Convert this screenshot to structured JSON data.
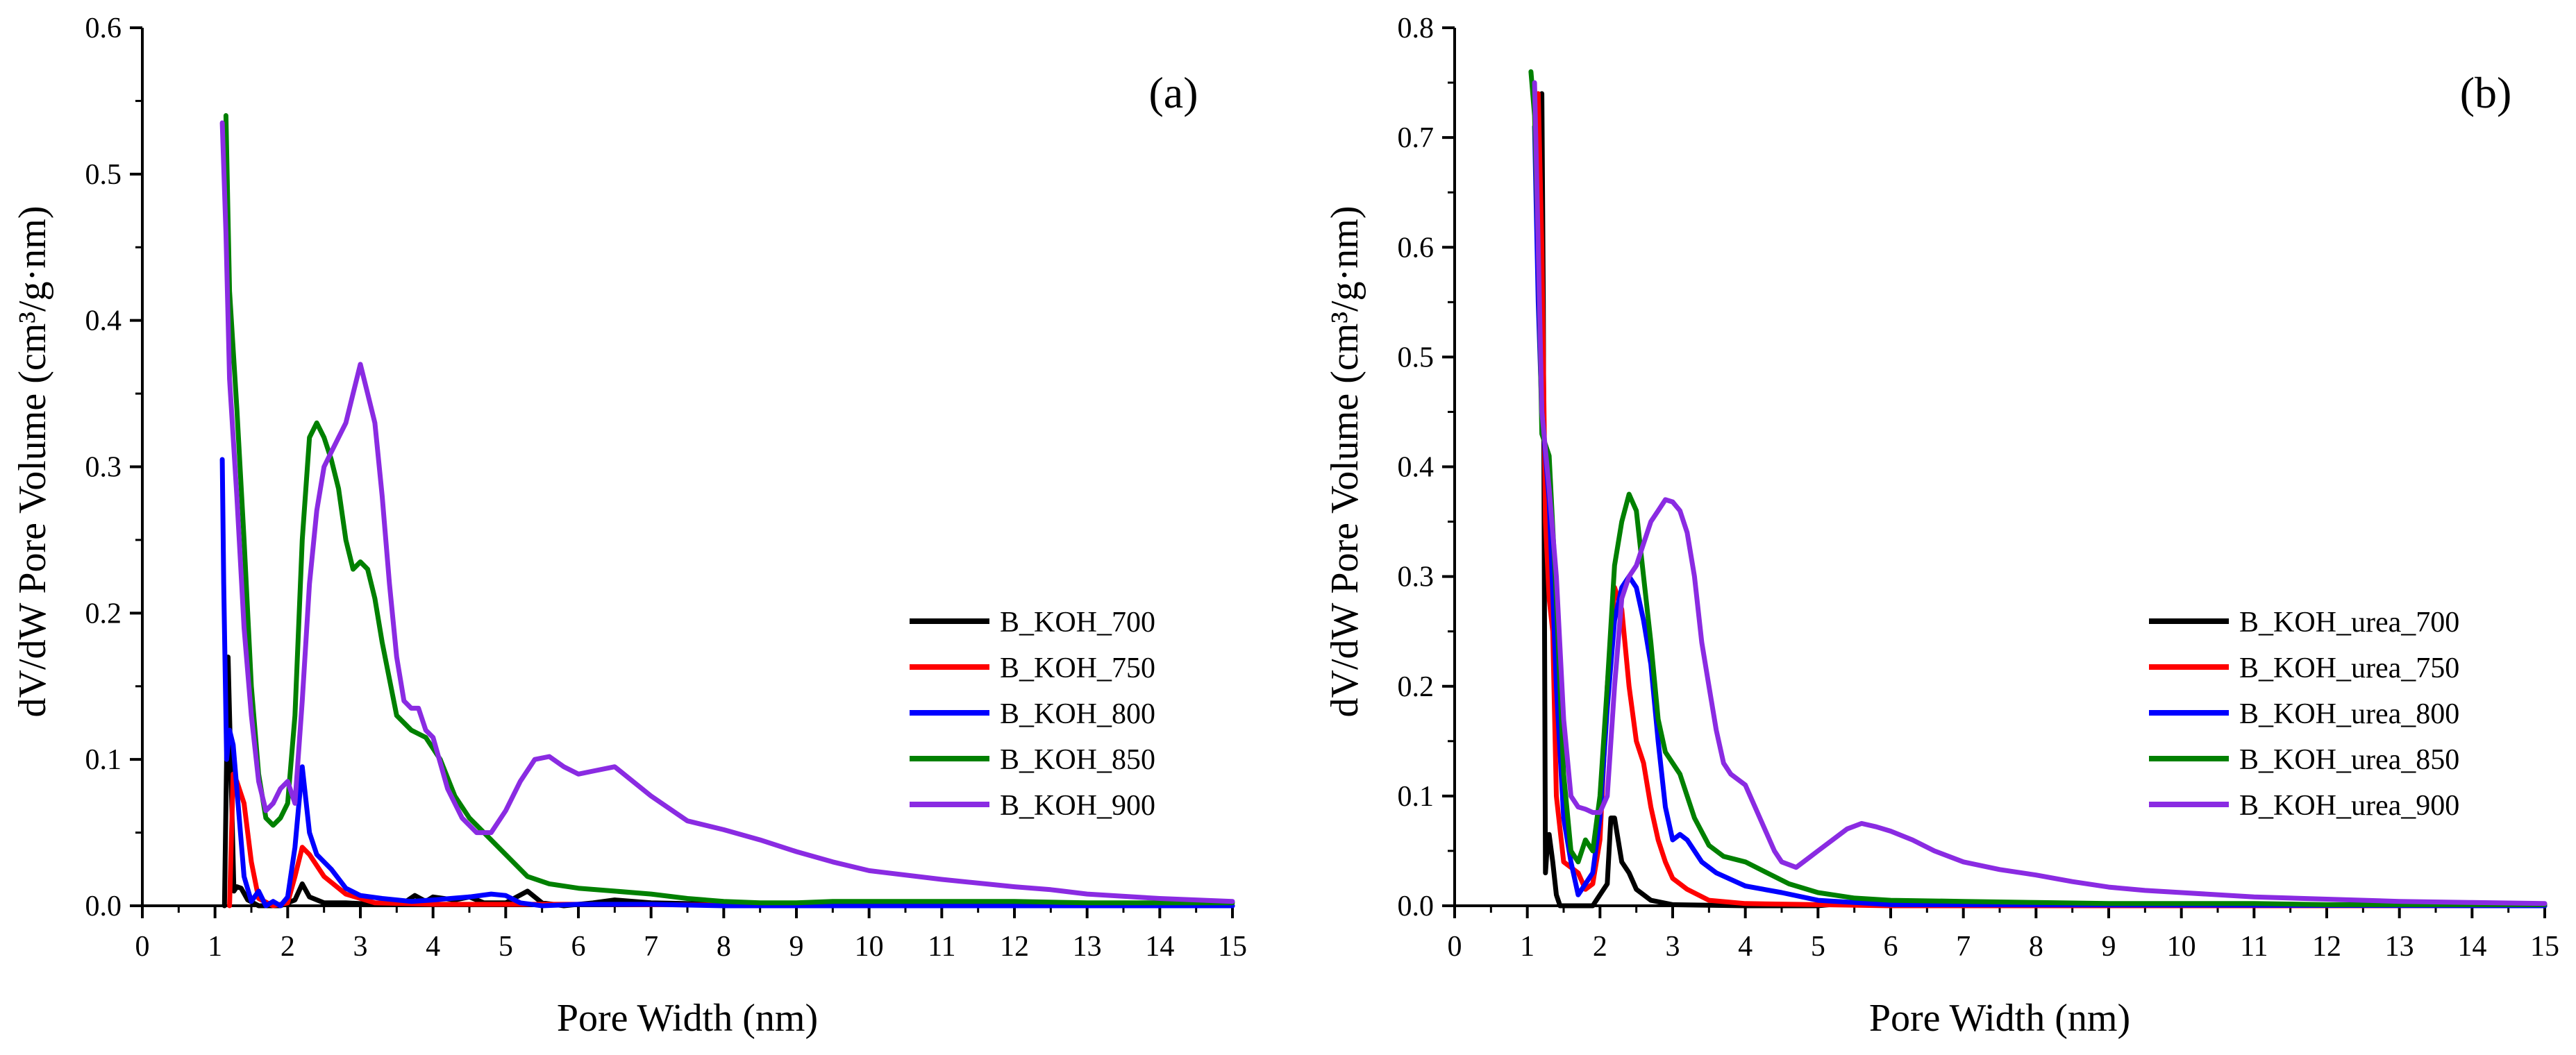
{
  "chart_data": [
    {
      "type": "line",
      "panel_label": "(a)",
      "xlabel": "Pore Width (nm)",
      "ylabel": "dV/dW Pore Volume (cm³/g·nm)",
      "xlim": [
        0,
        15
      ],
      "ylim": [
        0,
        0.6
      ],
      "xticks": [
        0,
        1,
        2,
        3,
        4,
        5,
        6,
        7,
        8,
        9,
        10,
        11,
        12,
        13,
        14,
        15
      ],
      "yticks": [
        0.0,
        0.1,
        0.2,
        0.3,
        0.4,
        0.5,
        0.6
      ],
      "xtick_labels": [
        "0",
        "1",
        "2",
        "3",
        "4",
        "5",
        "6",
        "7",
        "8",
        "9",
        "10",
        "11",
        "12",
        "13",
        "14",
        "15"
      ],
      "ytick_labels": [
        "0.0",
        "0.1",
        "0.2",
        "0.3",
        "0.4",
        "0.5",
        "0.6"
      ],
      "grid": false,
      "legend_position": "right-middle",
      "series": [
        {
          "name": "B_KOH_700",
          "color": "#000000",
          "x": [
            1.13,
            1.18,
            1.22,
            1.26,
            1.3,
            1.36,
            1.45,
            1.6,
            1.9,
            2.1,
            2.2,
            2.3,
            2.5,
            2.8,
            3.2,
            3.6,
            3.75,
            3.9,
            4.0,
            4.3,
            4.5,
            4.7,
            5.0,
            5.3,
            5.5,
            5.8,
            6.2,
            6.5,
            7.0,
            8.0,
            10.0,
            15.0
          ],
          "y": [
            0.0,
            0.17,
            0.09,
            0.01,
            0.013,
            0.012,
            0.004,
            0.0,
            0.0,
            0.004,
            0.015,
            0.006,
            0.002,
            0.002,
            0.001,
            0.002,
            0.007,
            0.003,
            0.006,
            0.004,
            0.006,
            0.002,
            0.002,
            0.01,
            0.002,
            0.0,
            0.002,
            0.004,
            0.002,
            0.001,
            0.0,
            0.0
          ]
        },
        {
          "name": "B_KOH_750",
          "color": "#ff0000",
          "x": [
            1.2,
            1.25,
            1.3,
            1.4,
            1.5,
            1.6,
            1.8,
            2.0,
            2.1,
            2.2,
            2.3,
            2.5,
            2.8,
            3.2,
            4.0,
            5.0,
            6.0,
            10.0,
            15.0
          ],
          "y": [
            0.0,
            0.09,
            0.085,
            0.07,
            0.03,
            0.005,
            0.0,
            0.002,
            0.02,
            0.04,
            0.035,
            0.02,
            0.008,
            0.002,
            0.001,
            0.001,
            0.001,
            0.0,
            0.0
          ]
        },
        {
          "name": "B_KOH_800",
          "color": "#0000ff",
          "x": [
            1.1,
            1.12,
            1.16,
            1.2,
            1.25,
            1.3,
            1.35,
            1.4,
            1.5,
            1.6,
            1.7,
            1.8,
            1.9,
            2.0,
            2.1,
            2.2,
            2.3,
            2.4,
            2.6,
            2.8,
            3.0,
            3.3,
            3.7,
            4.0,
            4.5,
            4.8,
            5.0,
            5.2,
            5.5,
            6.0,
            7.0,
            8.0,
            10.0,
            15.0
          ],
          "y": [
            0.305,
            0.22,
            0.1,
            0.12,
            0.11,
            0.08,
            0.05,
            0.02,
            0.003,
            0.01,
            0.0,
            0.003,
            0.0,
            0.006,
            0.04,
            0.095,
            0.05,
            0.035,
            0.025,
            0.012,
            0.007,
            0.005,
            0.003,
            0.004,
            0.006,
            0.008,
            0.007,
            0.002,
            0.0,
            0.001,
            0.001,
            0.0,
            0.0,
            0.0
          ]
        },
        {
          "name": "B_KOH_850",
          "color": "#008000",
          "x": [
            1.15,
            1.2,
            1.3,
            1.4,
            1.5,
            1.6,
            1.7,
            1.8,
            1.9,
            2.0,
            2.1,
            2.2,
            2.3,
            2.4,
            2.5,
            2.6,
            2.7,
            2.8,
            2.9,
            3.0,
            3.1,
            3.2,
            3.3,
            3.5,
            3.7,
            3.9,
            4.1,
            4.3,
            4.5,
            4.8,
            5.0,
            5.3,
            5.6,
            6.0,
            6.5,
            7.0,
            7.5,
            8.0,
            8.5,
            9.0,
            9.5,
            10.0,
            11.0,
            12.0,
            13.0,
            14.0,
            15.0
          ],
          "y": [
            0.54,
            0.42,
            0.34,
            0.25,
            0.15,
            0.09,
            0.06,
            0.055,
            0.06,
            0.07,
            0.13,
            0.25,
            0.32,
            0.33,
            0.32,
            0.305,
            0.285,
            0.25,
            0.23,
            0.235,
            0.23,
            0.21,
            0.18,
            0.13,
            0.12,
            0.115,
            0.1,
            0.075,
            0.06,
            0.045,
            0.035,
            0.02,
            0.015,
            0.012,
            0.01,
            0.008,
            0.005,
            0.003,
            0.002,
            0.002,
            0.003,
            0.003,
            0.003,
            0.003,
            0.002,
            0.002,
            0.002
          ]
        },
        {
          "name": "B_KOH_900",
          "color": "#8a2be2",
          "x": [
            1.1,
            1.15,
            1.2,
            1.3,
            1.4,
            1.5,
            1.6,
            1.7,
            1.8,
            1.9,
            2.0,
            2.1,
            2.2,
            2.3,
            2.4,
            2.5,
            2.6,
            2.7,
            2.8,
            2.9,
            3.0,
            3.1,
            3.2,
            3.3,
            3.4,
            3.5,
            3.6,
            3.7,
            3.8,
            3.9,
            4.0,
            4.2,
            4.4,
            4.6,
            4.8,
            5.0,
            5.2,
            5.4,
            5.6,
            5.8,
            6.0,
            6.2,
            6.5,
            7.0,
            7.5,
            8.0,
            8.5,
            9.0,
            9.5,
            10.0,
            11.0,
            12.0,
            12.5,
            13.0,
            14.0,
            15.0
          ],
          "y": [
            0.535,
            0.46,
            0.36,
            0.28,
            0.19,
            0.13,
            0.085,
            0.065,
            0.07,
            0.08,
            0.085,
            0.07,
            0.14,
            0.22,
            0.27,
            0.3,
            0.31,
            0.32,
            0.33,
            0.35,
            0.37,
            0.35,
            0.33,
            0.28,
            0.22,
            0.17,
            0.14,
            0.135,
            0.135,
            0.12,
            0.115,
            0.08,
            0.06,
            0.05,
            0.05,
            0.065,
            0.085,
            0.1,
            0.102,
            0.095,
            0.09,
            0.092,
            0.095,
            0.075,
            0.058,
            0.052,
            0.045,
            0.037,
            0.03,
            0.024,
            0.018,
            0.013,
            0.011,
            0.008,
            0.005,
            0.003
          ]
        }
      ]
    },
    {
      "type": "line",
      "panel_label": "(b)",
      "xlabel": "Pore Width (nm)",
      "ylabel": "dV/dW Pore Volume (cm³/g·nm)",
      "xlim": [
        0,
        15
      ],
      "ylim": [
        0,
        0.8
      ],
      "xticks": [
        0,
        1,
        2,
        3,
        4,
        5,
        6,
        7,
        8,
        9,
        10,
        11,
        12,
        13,
        14,
        15
      ],
      "yticks": [
        0.0,
        0.1,
        0.2,
        0.3,
        0.4,
        0.5,
        0.6,
        0.7,
        0.8
      ],
      "xtick_labels": [
        "0",
        "1",
        "2",
        "3",
        "4",
        "5",
        "6",
        "7",
        "8",
        "9",
        "10",
        "11",
        "12",
        "13",
        "14",
        "15"
      ],
      "ytick_labels": [
        "0.0",
        "0.1",
        "0.2",
        "0.3",
        "0.4",
        "0.5",
        "0.6",
        "0.7",
        "0.8"
      ],
      "grid": false,
      "legend_position": "right-middle",
      "series": [
        {
          "name": "B_KOH_urea_700",
          "color": "#000000",
          "x": [
            1.2,
            1.22,
            1.25,
            1.28,
            1.3,
            1.35,
            1.4,
            1.45,
            1.6,
            1.9,
            2.0,
            2.1,
            2.15,
            2.2,
            2.3,
            2.4,
            2.5,
            2.7,
            3.0,
            4.0,
            5.0,
            5.8,
            6.0,
            7.0,
            10.0,
            15.0
          ],
          "y": [
            0.74,
            0.55,
            0.03,
            0.06,
            0.065,
            0.04,
            0.01,
            0.0,
            0.0,
            0.0,
            0.01,
            0.02,
            0.08,
            0.08,
            0.04,
            0.03,
            0.015,
            0.005,
            0.001,
            0.0,
            0.0,
            0.005,
            0.003,
            0.0,
            0.0,
            0.0
          ]
        },
        {
          "name": "B_KOH_urea_750",
          "color": "#ff0000",
          "x": [
            1.15,
            1.2,
            1.25,
            1.3,
            1.35,
            1.4,
            1.5,
            1.6,
            1.7,
            1.8,
            1.9,
            2.0,
            2.1,
            2.2,
            2.3,
            2.4,
            2.5,
            2.6,
            2.7,
            2.8,
            2.9,
            3.0,
            3.2,
            3.5,
            4.0,
            5.0,
            6.0,
            15.0
          ],
          "y": [
            0.74,
            0.6,
            0.35,
            0.28,
            0.25,
            0.1,
            0.04,
            0.035,
            0.03,
            0.015,
            0.02,
            0.06,
            0.2,
            0.29,
            0.27,
            0.2,
            0.15,
            0.13,
            0.09,
            0.06,
            0.04,
            0.025,
            0.015,
            0.005,
            0.002,
            0.001,
            0.0,
            0.0
          ]
        },
        {
          "name": "B_KOH_urea_800",
          "color": "#0000ff",
          "x": [
            1.1,
            1.15,
            1.2,
            1.3,
            1.4,
            1.5,
            1.6,
            1.7,
            1.8,
            1.9,
            2.0,
            2.1,
            2.2,
            2.3,
            2.4,
            2.5,
            2.6,
            2.7,
            2.8,
            2.9,
            3.0,
            3.1,
            3.2,
            3.4,
            3.6,
            4.0,
            4.5,
            5.0,
            6.0,
            15.0
          ],
          "y": [
            0.71,
            0.55,
            0.45,
            0.37,
            0.2,
            0.08,
            0.04,
            0.01,
            0.02,
            0.03,
            0.08,
            0.18,
            0.26,
            0.29,
            0.3,
            0.29,
            0.26,
            0.22,
            0.15,
            0.09,
            0.06,
            0.065,
            0.06,
            0.04,
            0.03,
            0.018,
            0.012,
            0.005,
            0.001,
            0.0
          ]
        },
        {
          "name": "B_KOH_urea_850",
          "color": "#008000",
          "x": [
            1.05,
            1.1,
            1.15,
            1.2,
            1.3,
            1.4,
            1.5,
            1.6,
            1.7,
            1.8,
            1.9,
            2.0,
            2.1,
            2.2,
            2.3,
            2.4,
            2.5,
            2.6,
            2.7,
            2.8,
            2.9,
            3.0,
            3.1,
            3.2,
            3.3,
            3.5,
            3.7,
            4.0,
            4.3,
            4.6,
            5.0,
            5.5,
            6.0,
            7.0,
            8.0,
            9.0,
            10.0,
            11.0,
            12.0,
            13.0,
            14.0,
            15.0
          ],
          "y": [
            0.76,
            0.72,
            0.6,
            0.43,
            0.41,
            0.28,
            0.12,
            0.05,
            0.04,
            0.06,
            0.05,
            0.1,
            0.2,
            0.31,
            0.35,
            0.375,
            0.36,
            0.3,
            0.24,
            0.17,
            0.14,
            0.13,
            0.12,
            0.1,
            0.08,
            0.055,
            0.045,
            0.04,
            0.03,
            0.02,
            0.012,
            0.007,
            0.005,
            0.004,
            0.003,
            0.002,
            0.002,
            0.002,
            0.001,
            0.001,
            0.001,
            0.001
          ]
        },
        {
          "name": "B_KOH_urea_900",
          "color": "#8a2be2",
          "x": [
            1.1,
            1.15,
            1.2,
            1.3,
            1.4,
            1.5,
            1.6,
            1.7,
            1.8,
            1.9,
            2.0,
            2.1,
            2.2,
            2.3,
            2.4,
            2.5,
            2.6,
            2.7,
            2.8,
            2.9,
            3.0,
            3.1,
            3.2,
            3.3,
            3.4,
            3.5,
            3.6,
            3.7,
            3.8,
            3.9,
            4.0,
            4.2,
            4.4,
            4.5,
            4.7,
            4.9,
            5.0,
            5.2,
            5.4,
            5.6,
            5.8,
            6.0,
            6.3,
            6.6,
            7.0,
            7.5,
            8.0,
            8.5,
            9.0,
            9.5,
            10.0,
            11.0,
            12.0,
            13.0,
            14.0,
            15.0
          ],
          "y": [
            0.75,
            0.6,
            0.45,
            0.38,
            0.3,
            0.17,
            0.1,
            0.09,
            0.088,
            0.085,
            0.085,
            0.1,
            0.2,
            0.28,
            0.3,
            0.31,
            0.33,
            0.35,
            0.36,
            0.37,
            0.368,
            0.36,
            0.34,
            0.3,
            0.24,
            0.2,
            0.16,
            0.13,
            0.12,
            0.115,
            0.11,
            0.08,
            0.05,
            0.04,
            0.035,
            0.045,
            0.05,
            0.06,
            0.07,
            0.075,
            0.072,
            0.068,
            0.06,
            0.05,
            0.04,
            0.033,
            0.028,
            0.022,
            0.017,
            0.014,
            0.012,
            0.008,
            0.006,
            0.004,
            0.003,
            0.002
          ]
        }
      ]
    }
  ]
}
